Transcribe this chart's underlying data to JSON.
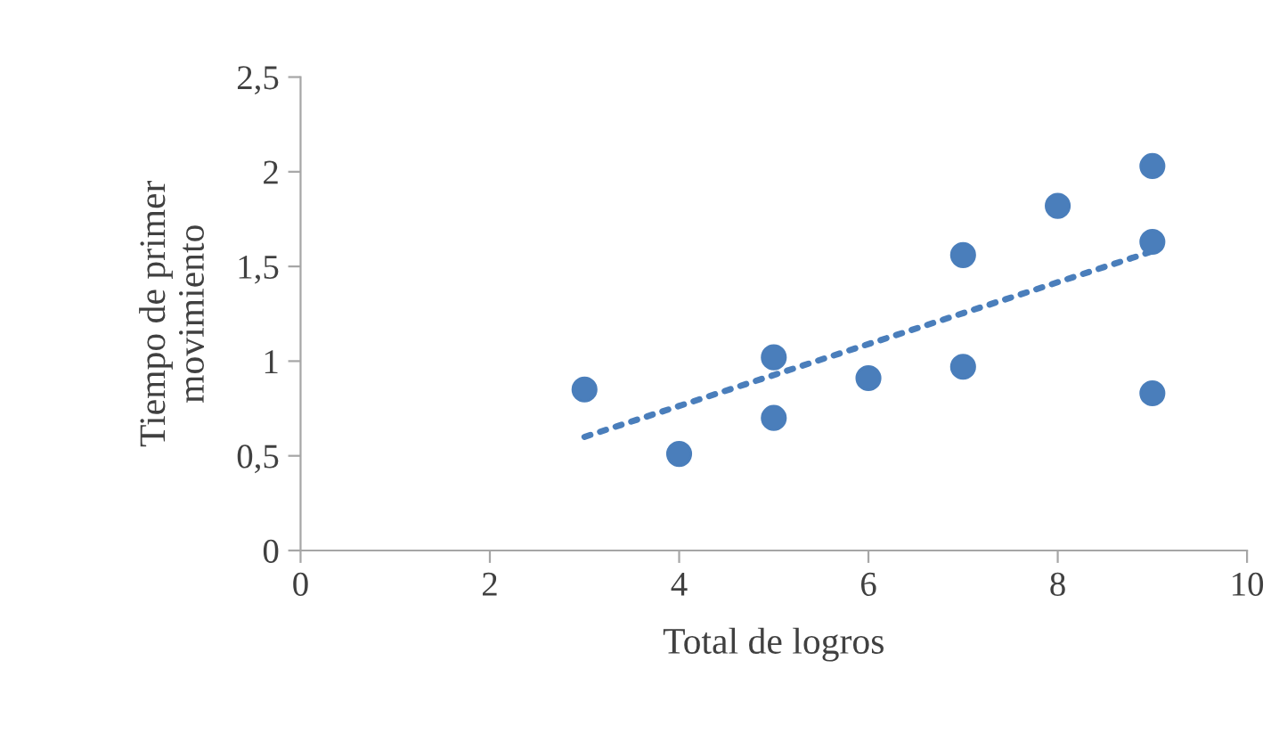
{
  "chart_data": {
    "type": "scatter",
    "xlabel": "Total de logros",
    "ylabel": "Tiempo de primer\nmovimiento",
    "series": [
      {
        "color": "#4a7ebb",
        "x": [
          3,
          4,
          5,
          5,
          6,
          7,
          7,
          8,
          9,
          9,
          9
        ],
        "values": [
          0.85,
          0.51,
          1.02,
          0.7,
          0.91,
          1.56,
          0.97,
          1.82,
          2.03,
          1.63,
          0.83
        ],
        "marker": "circle"
      },
      {
        "type": "line",
        "color": "#4a7ebb",
        "x": [
          3,
          9
        ],
        "values": [
          0.6,
          1.58
        ],
        "line_style": "dotted",
        "marker": "none"
      }
    ],
    "xlim": [
      0,
      10
    ],
    "xticks": [
      0,
      2,
      4,
      6,
      8,
      10
    ],
    "ylim": [
      0,
      2.5
    ],
    "yticks": [
      {
        "value": 0,
        "label": "0"
      },
      {
        "value": 0.5,
        "label": "0,5"
      },
      {
        "value": 1,
        "label": "1"
      },
      {
        "value": 1.5,
        "label": "1,5"
      },
      {
        "value": 2,
        "label": "2"
      },
      {
        "value": 2.5,
        "label": "2,5"
      }
    ],
    "grid": false,
    "legend": false
  }
}
